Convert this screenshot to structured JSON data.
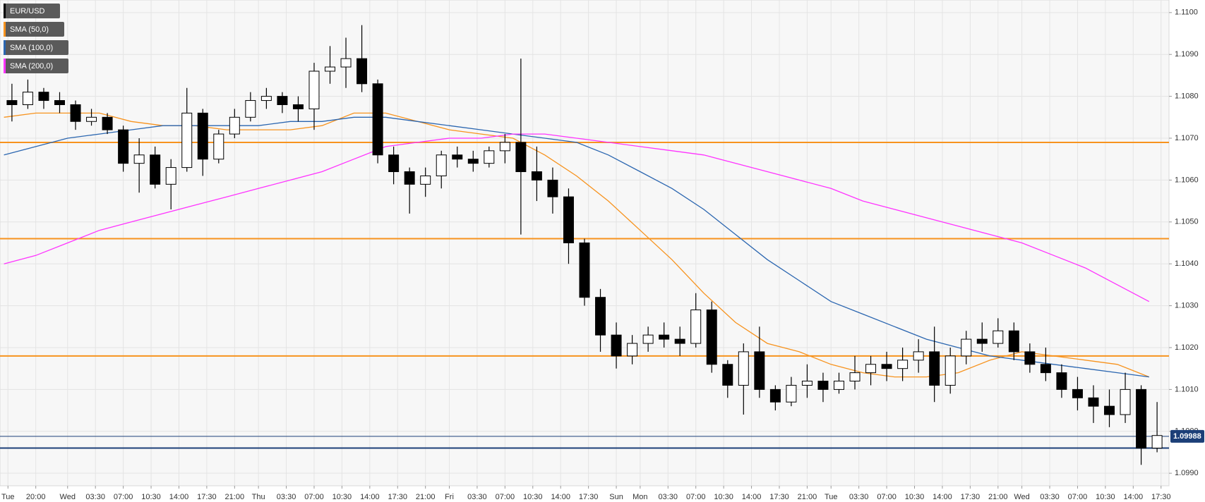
{
  "chart_data": {
    "type": "candlestick",
    "candles": {
      "name": "EUR/USD",
      "color": "#000000",
      "x": [
        -7,
        -5,
        -3,
        -1,
        1,
        3,
        5,
        7,
        9,
        11,
        13,
        15,
        17,
        19,
        21,
        23,
        25,
        27,
        29,
        31,
        33,
        35,
        37,
        39,
        41,
        43,
        45,
        47,
        49,
        51,
        53,
        55,
        57,
        59,
        61,
        63,
        65,
        67,
        69,
        71,
        73,
        75,
        77,
        79,
        81,
        83,
        85,
        87,
        89,
        91,
        93,
        95,
        97,
        99,
        101,
        103,
        105,
        107,
        109,
        111,
        113,
        115,
        117,
        119,
        121,
        123,
        125,
        127,
        129,
        131,
        133,
        135,
        137
      ],
      "open": [
        1.1079,
        1.1078,
        1.1081,
        1.1079,
        1.1078,
        1.1074,
        1.1075,
        1.1072,
        1.1064,
        1.1066,
        1.1059,
        1.1063,
        1.1076,
        1.1065,
        1.1071,
        1.1075,
        1.1079,
        1.108,
        1.1078,
        1.1077,
        1.1086,
        1.1087,
        1.1089,
        1.1083,
        1.1066,
        1.1062,
        1.1059,
        1.1061,
        1.1066,
        1.1065,
        1.1064,
        1.1067,
        1.1069,
        1.1062,
        1.106,
        1.1056,
        1.1045,
        1.1032,
        1.1023,
        1.1018,
        1.1021,
        1.1023,
        1.1022,
        1.1021,
        1.1029,
        1.1016,
        1.1011,
        1.1019,
        1.101,
        1.1007,
        1.1011,
        1.1012,
        1.101,
        1.1012,
        1.1014,
        1.1016,
        1.1015,
        1.1017,
        1.1019,
        1.1011,
        1.1018,
        1.1022,
        1.1021,
        1.1024,
        1.1019,
        1.1016,
        1.1014,
        1.101,
        1.1008,
        1.1006,
        1.1004,
        1.101,
        1.0996
      ],
      "high": [
        1.1083,
        1.1084,
        1.1082,
        1.1081,
        1.1079,
        1.1077,
        1.1076,
        1.1073,
        1.107,
        1.1068,
        1.1065,
        1.1082,
        1.1077,
        1.1072,
        1.1077,
        1.1081,
        1.1082,
        1.1081,
        1.108,
        1.1088,
        1.1092,
        1.1094,
        1.1097,
        1.1084,
        1.1068,
        1.1063,
        1.1063,
        1.1067,
        1.1068,
        1.1067,
        1.1068,
        1.1071,
        1.1089,
        1.1068,
        1.1063,
        1.1058,
        1.1046,
        1.1034,
        1.1026,
        1.1023,
        1.1025,
        1.1026,
        1.1025,
        1.1033,
        1.1031,
        1.1017,
        1.1021,
        1.1025,
        1.1011,
        1.1013,
        1.1016,
        1.1014,
        1.1014,
        1.1018,
        1.1018,
        1.1019,
        1.102,
        1.1022,
        1.1025,
        1.102,
        1.1024,
        1.1026,
        1.1027,
        1.1026,
        1.1021,
        1.102,
        1.1016,
        1.1013,
        1.1011,
        1.101,
        1.1014,
        1.1011,
        1.1007
      ],
      "low": [
        1.1074,
        1.1077,
        1.1077,
        1.1076,
        1.1072,
        1.1073,
        1.1071,
        1.1062,
        1.1057,
        1.1058,
        1.1053,
        1.1062,
        1.1061,
        1.1064,
        1.107,
        1.1074,
        1.1077,
        1.1076,
        1.1074,
        1.1072,
        1.1083,
        1.1082,
        1.1081,
        1.1064,
        1.1059,
        1.1052,
        1.1056,
        1.1058,
        1.1063,
        1.1062,
        1.1063,
        1.1064,
        1.1047,
        1.1055,
        1.1052,
        1.104,
        1.103,
        1.1019,
        1.1015,
        1.1016,
        1.1019,
        1.102,
        1.1018,
        1.102,
        1.1014,
        1.1008,
        1.1004,
        1.1008,
        1.1005,
        1.1006,
        1.1008,
        1.1007,
        1.1009,
        1.101,
        1.1011,
        1.1012,
        1.1012,
        1.1014,
        1.1007,
        1.1009,
        1.1016,
        1.1019,
        1.102,
        1.1017,
        1.1014,
        1.1012,
        1.1008,
        1.1005,
        1.1002,
        1.1001,
        1.1002,
        1.0992,
        1.0995
      ],
      "close": [
        1.1078,
        1.1081,
        1.1079,
        1.1078,
        1.1074,
        1.1075,
        1.1072,
        1.1064,
        1.1066,
        1.1059,
        1.1063,
        1.1076,
        1.1065,
        1.1071,
        1.1075,
        1.1079,
        1.108,
        1.1078,
        1.1077,
        1.1086,
        1.1087,
        1.1089,
        1.1083,
        1.1066,
        1.1062,
        1.1059,
        1.1061,
        1.1066,
        1.1065,
        1.1064,
        1.1067,
        1.1069,
        1.1062,
        1.106,
        1.1056,
        1.1045,
        1.1032,
        1.1023,
        1.1018,
        1.1021,
        1.1023,
        1.1022,
        1.1021,
        1.1029,
        1.1016,
        1.1011,
        1.1019,
        1.101,
        1.1007,
        1.1011,
        1.1012,
        1.101,
        1.1012,
        1.1014,
        1.1016,
        1.1015,
        1.1017,
        1.1019,
        1.1011,
        1.1018,
        1.1022,
        1.1021,
        1.1024,
        1.1019,
        1.1016,
        1.1014,
        1.101,
        1.1008,
        1.1006,
        1.1004,
        1.101,
        1.0996,
        1.0999
      ]
    },
    "line_x": [
      -8,
      -4,
      0,
      4,
      8,
      12,
      16,
      20,
      24,
      28,
      32,
      36,
      40,
      44,
      48,
      52,
      56,
      60,
      64,
      68,
      72,
      76,
      80,
      84,
      88,
      92,
      96,
      100,
      104,
      108,
      112,
      116,
      120,
      124,
      128,
      132,
      136
    ],
    "series": [
      {
        "name": "SMA (50,0)",
        "color": "#f7931e",
        "values": [
          1.1075,
          1.1076,
          1.1076,
          1.1076,
          1.1074,
          1.1073,
          1.1073,
          1.1072,
          1.1072,
          1.1072,
          1.1073,
          1.1076,
          1.1076,
          1.1074,
          1.1072,
          1.1071,
          1.107,
          1.1066,
          1.1061,
          1.1055,
          1.1048,
          1.1041,
          1.1033,
          1.1026,
          1.1021,
          1.1019,
          1.1016,
          1.1014,
          1.1013,
          1.1013,
          1.1014,
          1.1017,
          1.1019,
          1.1018,
          1.1017,
          1.1016,
          1.1013
        ]
      },
      {
        "name": "SMA (100,0)",
        "color": "#2b66b0",
        "values": [
          1.1066,
          1.1068,
          1.107,
          1.1071,
          1.1072,
          1.1073,
          1.1073,
          1.1073,
          1.1073,
          1.1074,
          1.1074,
          1.1075,
          1.1075,
          1.1074,
          1.1073,
          1.1072,
          1.1071,
          1.107,
          1.1069,
          1.1066,
          1.1062,
          1.1058,
          1.1053,
          1.1047,
          1.1041,
          1.1036,
          1.1031,
          1.1028,
          1.1025,
          1.1022,
          1.102,
          1.1018,
          1.1017,
          1.1016,
          1.1015,
          1.1014,
          1.1013
        ]
      },
      {
        "name": "SMA (200,0)",
        "color": "#ff33ff",
        "values": [
          1.104,
          1.1042,
          1.1045,
          1.1048,
          1.105,
          1.1052,
          1.1054,
          1.1056,
          1.1058,
          1.106,
          1.1062,
          1.1065,
          1.1068,
          1.1069,
          1.107,
          1.107,
          1.1071,
          1.1071,
          1.107,
          1.1069,
          1.1068,
          1.1067,
          1.1066,
          1.1064,
          1.1062,
          1.106,
          1.1058,
          1.1055,
          1.1053,
          1.1051,
          1.1049,
          1.1047,
          1.1045,
          1.1042,
          1.1039,
          1.1035,
          1.1031
        ]
      }
    ],
    "levels": [
      {
        "value": 1.1069,
        "color": "#f7931e"
      },
      {
        "value": 1.1046,
        "color": "#f7931e"
      },
      {
        "value": 1.1018,
        "color": "#f7931e"
      },
      {
        "value": 1.0996,
        "color": "#1c3f78"
      }
    ],
    "last_price": 1.09988,
    "last_price_color": "#1c3f78",
    "xlim": [
      -8.5,
      138.5
    ],
    "ylim": [
      1.0987,
      1.1103
    ],
    "xticks": [
      {
        "value": -7.5,
        "label": "Tue"
      },
      {
        "value": -4,
        "label": "20:00"
      },
      {
        "value": 0,
        "label": "Wed"
      },
      {
        "value": 3.5,
        "label": "03:30"
      },
      {
        "value": 7,
        "label": "07:00"
      },
      {
        "value": 10.5,
        "label": "10:30"
      },
      {
        "value": 14,
        "label": "14:00"
      },
      {
        "value": 17.5,
        "label": "17:30"
      },
      {
        "value": 21,
        "label": "21:00"
      },
      {
        "value": 24,
        "label": "Thu"
      },
      {
        "value": 27.5,
        "label": "03:30"
      },
      {
        "value": 31,
        "label": "07:00"
      },
      {
        "value": 34.5,
        "label": "10:30"
      },
      {
        "value": 38,
        "label": "14:00"
      },
      {
        "value": 41.5,
        "label": "17:30"
      },
      {
        "value": 45,
        "label": "21:00"
      },
      {
        "value": 48,
        "label": "Fri"
      },
      {
        "value": 51.5,
        "label": "03:30"
      },
      {
        "value": 55,
        "label": "07:00"
      },
      {
        "value": 58.5,
        "label": "10:30"
      },
      {
        "value": 62,
        "label": "14:00"
      },
      {
        "value": 65.5,
        "label": "17:30"
      },
      {
        "value": 69,
        "label": "Sun"
      },
      {
        "value": 72,
        "label": "Mon"
      },
      {
        "value": 75.5,
        "label": "03:30"
      },
      {
        "value": 79,
        "label": "07:00"
      },
      {
        "value": 82.5,
        "label": "10:30"
      },
      {
        "value": 86,
        "label": "14:00"
      },
      {
        "value": 89.5,
        "label": "17:30"
      },
      {
        "value": 93,
        "label": "21:00"
      },
      {
        "value": 96,
        "label": "Tue"
      },
      {
        "value": 99.5,
        "label": "03:30"
      },
      {
        "value": 103,
        "label": "07:00"
      },
      {
        "value": 106.5,
        "label": "10:30"
      },
      {
        "value": 110,
        "label": "14:00"
      },
      {
        "value": 113.5,
        "label": "17:30"
      },
      {
        "value": 117,
        "label": "21:00"
      },
      {
        "value": 120,
        "label": "Wed"
      },
      {
        "value": 123.5,
        "label": "03:30"
      },
      {
        "value": 127,
        "label": "07:00"
      },
      {
        "value": 130.5,
        "label": "10:30"
      },
      {
        "value": 134,
        "label": "14:00"
      },
      {
        "value": 137.5,
        "label": "17:30"
      }
    ],
    "yticks": [
      {
        "value": 1.11,
        "label": "1.1100"
      },
      {
        "value": 1.109,
        "label": "1.1090"
      },
      {
        "value": 1.108,
        "label": "1.1080"
      },
      {
        "value": 1.107,
        "label": "1.1070"
      },
      {
        "value": 1.106,
        "label": "1.1060"
      },
      {
        "value": 1.105,
        "label": "1.1050"
      },
      {
        "value": 1.104,
        "label": "1.1040"
      },
      {
        "value": 1.103,
        "label": "1.1030"
      },
      {
        "value": 1.102,
        "label": "1.1020"
      },
      {
        "value": 1.101,
        "label": "1.1010"
      },
      {
        "value": 1.1,
        "label": "1.1000"
      },
      {
        "value": 1.099,
        "label": "1.0990"
      }
    ],
    "grid": true
  }
}
